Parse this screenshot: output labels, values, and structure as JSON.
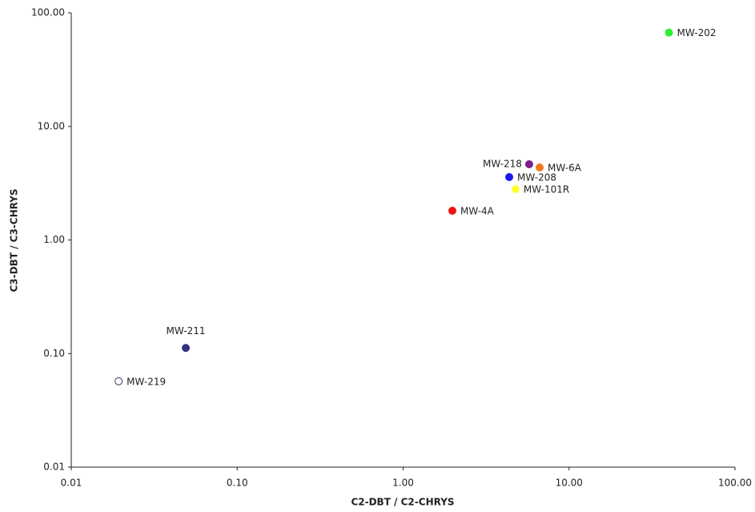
{
  "chart_data": {
    "type": "scatter",
    "xlabel": "C2-DBT / C2-CHRYS",
    "ylabel": "C3-DBT / C3-CHRYS",
    "xscale": "log",
    "yscale": "log",
    "grid": false,
    "xlim": [
      0.01,
      100
    ],
    "ylim": [
      0.01,
      100
    ],
    "xticks": [
      0.01,
      {
        "value": 0.1,
        "label": "0.10"
      },
      {
        "value": 1,
        "label": "1.00"
      },
      {
        "value": 10,
        "label": "10.00"
      },
      {
        "value": 100,
        "label": "100.00"
      }
    ],
    "yticks": [
      0.01,
      {
        "value": 0.1,
        "label": "0.10"
      },
      {
        "value": 1,
        "label": "1.00"
      },
      {
        "value": 10,
        "label": "10.00"
      },
      {
        "value": 100,
        "label": "100.00"
      }
    ],
    "series": [
      {
        "name": "MW-202",
        "color": "#33ee33",
        "x": [
          40
        ],
        "values": [
          67
        ],
        "label_position": "right"
      },
      {
        "name": "MW-218",
        "color": "#7b1f8c",
        "x": [
          5.75
        ],
        "values": [
          4.64
        ],
        "label_position": "left"
      },
      {
        "name": "MW-6A",
        "color": "#f07820",
        "x": [
          6.65
        ],
        "values": [
          4.35
        ],
        "label_position": "right"
      },
      {
        "name": "MW-208",
        "color": "#1a1aee",
        "x": [
          4.36
        ],
        "values": [
          3.58
        ],
        "label_position": "right"
      },
      {
        "name": "MW-101R",
        "color": "#ffff33",
        "x": [
          4.76
        ],
        "values": [
          2.8
        ],
        "label_position": "right"
      },
      {
        "name": "MW-4A",
        "color": "#ee1111",
        "x": [
          1.98
        ],
        "values": [
          1.81
        ],
        "label_position": "right"
      },
      {
        "name": "MW-211",
        "color": "#333380",
        "x": [
          0.049
        ],
        "values": [
          0.112
        ],
        "label_position": "top"
      },
      {
        "name": "MW-219",
        "color": "#ffffff",
        "edgecolor": "#333366",
        "x": [
          0.0193
        ],
        "values": [
          0.057
        ],
        "label_position": "right"
      }
    ]
  }
}
